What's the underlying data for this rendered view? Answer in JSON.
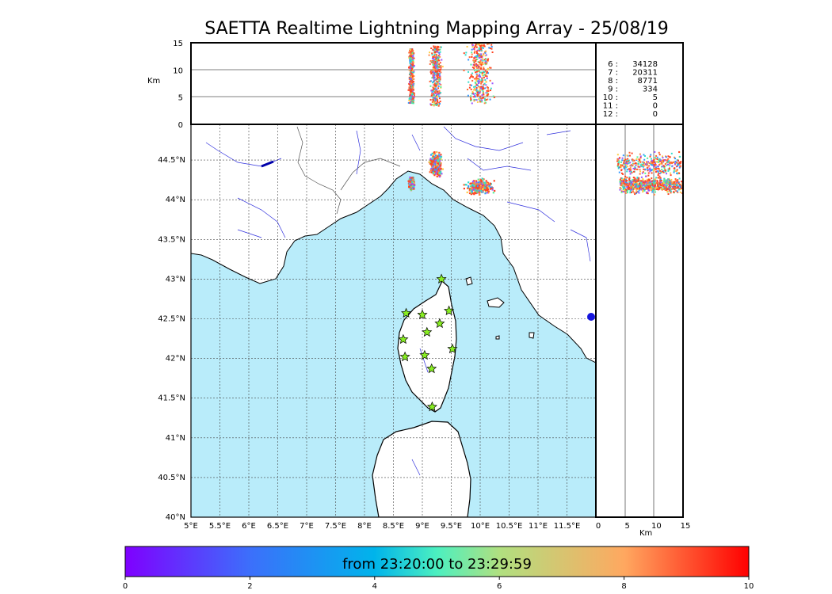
{
  "chart_data": {
    "type": "scatter",
    "title": "SAETTA Realtime Lightning Mapping Array - 25/08/19",
    "altitude_label": "Km",
    "altitude_ticks": [
      "0",
      "5",
      "10",
      "15"
    ],
    "x_ticks": [
      "5°E",
      "5.5°E",
      "6°E",
      "6.5°E",
      "7°E",
      "7.5°E",
      "8°E",
      "8.5°E",
      "9°E",
      "9.5°E",
      "10°E",
      "10.5°E",
      "11°E",
      "11.5°E"
    ],
    "y_ticks": [
      "40°N",
      "40.5°N",
      "41°N",
      "41.5°N",
      "42°N",
      "42.5°N",
      "43°N",
      "43.5°N",
      "44°N",
      "44.5°N"
    ],
    "lon_range": [
      5,
      12
    ],
    "lat_range": [
      40,
      44.95
    ],
    "alt_range": [
      0,
      15
    ],
    "station_counts": [
      {
        "label": "6  :",
        "value": "34128",
        "highlight": true
      },
      {
        "label": "7  :",
        "value": "20311",
        "highlight": false
      },
      {
        "label": "8  :",
        "value": "8771",
        "highlight": false
      },
      {
        "label": "9  :",
        "value": "334",
        "highlight": false
      },
      {
        "label": "10  :",
        "value": "5",
        "highlight": false
      },
      {
        "label": "11  :",
        "value": "0",
        "highlight": false
      },
      {
        "label": "12  :",
        "value": "0",
        "highlight": false
      }
    ],
    "stations": [
      {
        "lon": 9.33,
        "lat": 43.0
      },
      {
        "lon": 8.72,
        "lat": 42.57
      },
      {
        "lon": 9.0,
        "lat": 42.55
      },
      {
        "lon": 9.46,
        "lat": 42.6
      },
      {
        "lon": 9.3,
        "lat": 42.44
      },
      {
        "lon": 9.08,
        "lat": 42.33
      },
      {
        "lon": 8.67,
        "lat": 42.24
      },
      {
        "lon": 9.52,
        "lat": 42.12
      },
      {
        "lon": 9.04,
        "lat": 42.04
      },
      {
        "lon": 8.7,
        "lat": 42.02
      },
      {
        "lon": 9.16,
        "lat": 41.87
      },
      {
        "lon": 9.17,
        "lat": 41.39
      }
    ],
    "lightning_clusters": [
      {
        "lon": 9.22,
        "lat": 44.45,
        "spread_lon": 0.13,
        "spread_lat": 0.2,
        "alt_min": 3.5,
        "alt_max": 14.5
      },
      {
        "lon": 8.8,
        "lat": 44.22,
        "spread_lon": 0.06,
        "spread_lat": 0.1,
        "alt_min": 4,
        "alt_max": 14
      },
      {
        "lon": 9.98,
        "lat": 44.17,
        "spread_lon": 0.3,
        "spread_lat": 0.12,
        "alt_min": 4,
        "alt_max": 15
      }
    ],
    "colorbar": {
      "label": "from 23:20:00 to 23:29:59",
      "ticks": [
        "0",
        "2",
        "4",
        "6",
        "8",
        "10"
      ],
      "range": [
        0,
        10
      ]
    },
    "colors": {
      "sea": "#b9ecfa",
      "land": "#ffffff",
      "river": "#0000cc",
      "station_fill": "#88ee22",
      "count_highlight": "#ff0000"
    }
  }
}
